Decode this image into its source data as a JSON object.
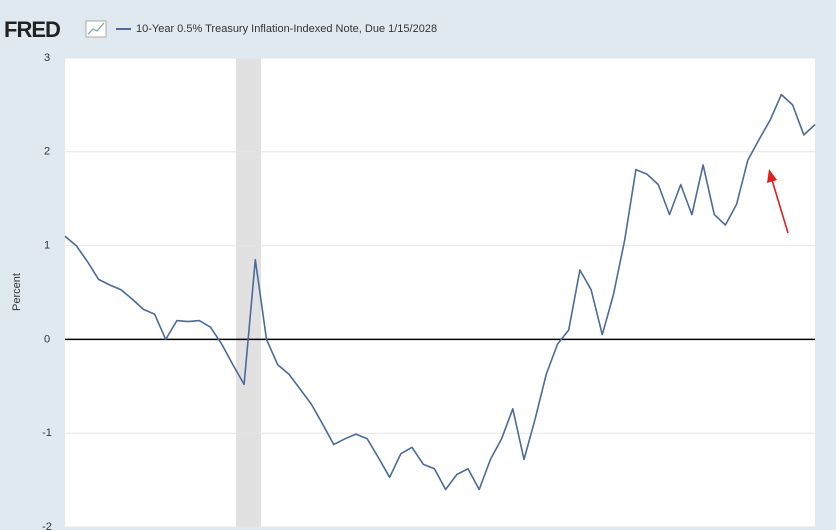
{
  "logo": "FRED",
  "chart_data": {
    "type": "line",
    "title": "10-Year 0.5% Treasury Inflation-Indexed Note, Due 1/15/2028",
    "y_label": "Percent",
    "series": [
      {
        "name": "10-Year 0.5% Treasury Inflation-Indexed Note, Due 1/15/2028",
        "color": "#4c6a9c",
        "values": [
          1.1,
          1.0,
          0.83,
          0.64,
          0.58,
          0.53,
          0.43,
          0.32,
          0.27,
          0.0,
          0.2,
          0.19,
          0.2,
          0.13,
          -0.05,
          -0.27,
          -0.48,
          0.85,
          0.0,
          -0.27,
          -0.37,
          -0.53,
          -0.69,
          -0.9,
          -1.12,
          -1.06,
          -1.01,
          -1.06,
          -1.26,
          -1.47,
          -1.22,
          -1.15,
          -1.33,
          -1.38,
          -1.6,
          -1.44,
          -1.38,
          -1.6,
          -1.28,
          -1.06,
          -0.74,
          -1.28,
          -0.85,
          -0.37,
          -0.05,
          0.1,
          0.74,
          0.53,
          0.05,
          0.48,
          1.06,
          1.81,
          1.76,
          1.65,
          1.33,
          1.65,
          1.33,
          1.86,
          1.33,
          1.22,
          1.44,
          1.91,
          2.13,
          2.34,
          2.61,
          2.5,
          2.18,
          2.29
        ]
      }
    ],
    "ylim": [
      -2,
      3
    ],
    "yticks": [
      -2,
      -1,
      0,
      1,
      2,
      3
    ],
    "grid": true
  }
}
